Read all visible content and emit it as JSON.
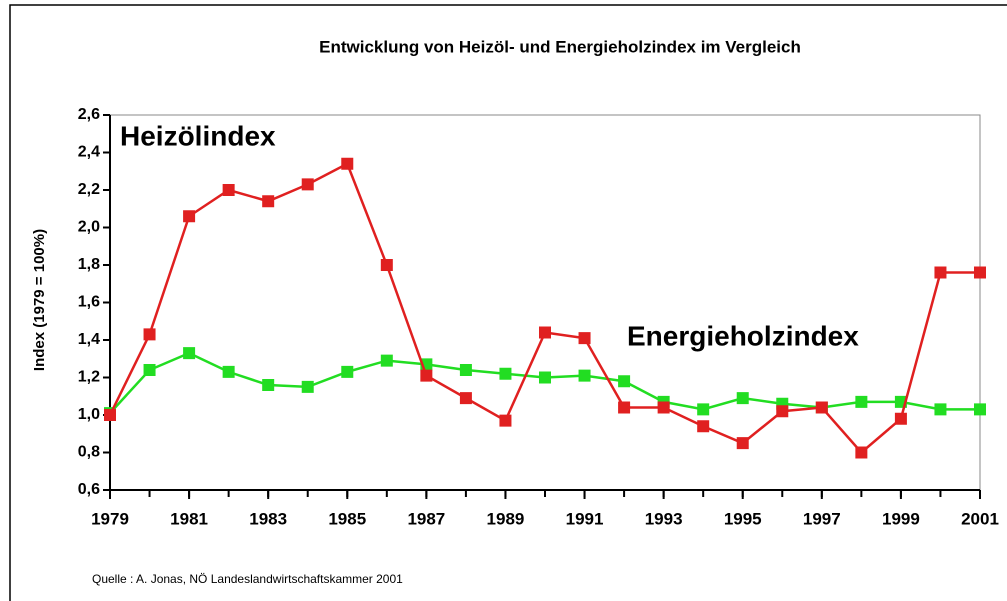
{
  "chart_data": {
    "type": "line",
    "title": "Entwicklung von Heizöl- und Energieholzindex im Vergleich",
    "y_label": "Index (1979 = 100%)",
    "annotations": [
      "Heizölindex",
      "Energieholzindex"
    ],
    "source": "Quelle : A. Jonas, NÖ Landeslandwirtschaftskammer 2001",
    "x": [
      1979,
      1980,
      1981,
      1982,
      1983,
      1984,
      1985,
      1986,
      1987,
      1988,
      1989,
      1990,
      1991,
      1992,
      1993,
      1994,
      1995,
      1996,
      1997,
      1998,
      1999,
      2000,
      2001
    ],
    "series": [
      {
        "name": "Heizölindex",
        "color": "#e02020",
        "values": [
          1.0,
          1.43,
          2.06,
          2.2,
          2.14,
          2.23,
          2.34,
          1.8,
          1.21,
          1.09,
          0.97,
          1.44,
          1.41,
          1.04,
          1.04,
          0.94,
          0.85,
          1.02,
          1.04,
          0.8,
          0.98,
          1.76,
          1.76
        ]
      },
      {
        "name": "Energieholzindex",
        "color": "#22dd22",
        "values": [
          1.01,
          1.24,
          1.33,
          1.23,
          1.16,
          1.15,
          1.23,
          1.29,
          1.27,
          1.24,
          1.22,
          1.2,
          1.21,
          1.18,
          1.07,
          1.03,
          1.09,
          1.06,
          1.04,
          1.07,
          1.07,
          1.03,
          1.03
        ]
      }
    ],
    "xlim": [
      1979,
      2001
    ],
    "xticks": [
      1979,
      1981,
      1983,
      1985,
      1987,
      1989,
      1991,
      1993,
      1995,
      1997,
      1999,
      2001
    ],
    "ylim": [
      0.6,
      2.6
    ],
    "yticks": [
      {
        "value": 0.6,
        "label": "0,6"
      },
      {
        "value": 0.8,
        "label": "0,8"
      },
      {
        "value": 1.0,
        "label": "1,0"
      },
      {
        "value": 1.2,
        "label": "1,2"
      },
      {
        "value": 1.4,
        "label": "1,4"
      },
      {
        "value": 1.6,
        "label": "1,6"
      },
      {
        "value": 1.8,
        "label": "1,8"
      },
      {
        "value": 2.0,
        "label": "2,0"
      },
      {
        "value": 2.2,
        "label": "2,2"
      },
      {
        "value": 2.4,
        "label": "2,4"
      },
      {
        "value": 2.6,
        "label": "2,6"
      }
    ],
    "grid": false
  }
}
